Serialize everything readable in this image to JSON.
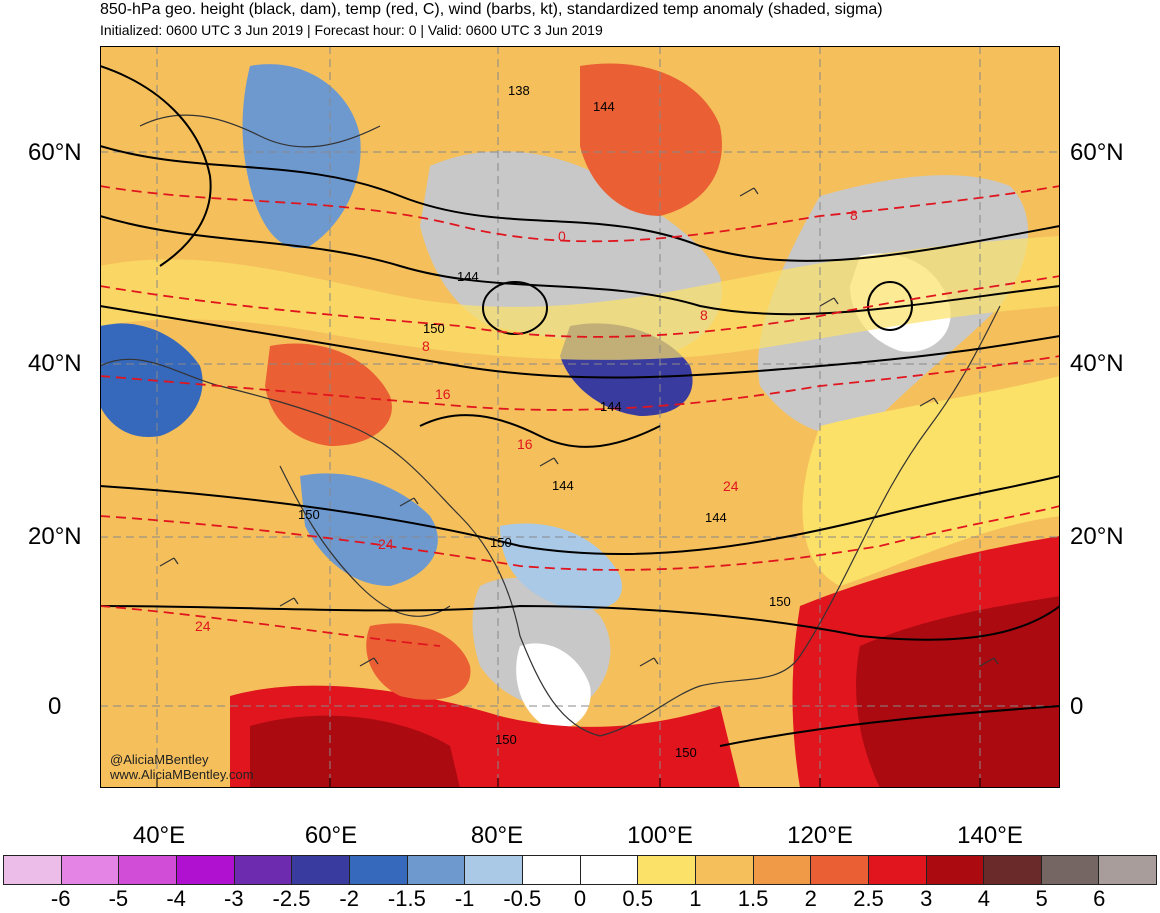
{
  "header": {
    "title": "850-hPa geo. height (black, dam), temp (red, C), wind (barbs, kt), standardized temp anomaly (shaded, sigma)",
    "subtitle": "Initialized: 0600 UTC 3 Jun 2019 | Forecast hour: 0 | Valid: 0600 UTC 3 Jun 2019"
  },
  "axes": {
    "lat_labels": [
      "60°N",
      "40°N",
      "20°N",
      "0"
    ],
    "lon_labels": [
      "40°E",
      "60°E",
      "80°E",
      "100°E",
      "120°E",
      "140°E"
    ]
  },
  "map": {
    "height_labels": [
      "138",
      "144",
      "144",
      "150",
      "144",
      "144",
      "150",
      "150",
      "144",
      "150",
      "150",
      "150"
    ],
    "temp_labels": [
      "0",
      "8",
      "8",
      "8",
      "16",
      "16",
      "24",
      "24",
      "24"
    ]
  },
  "watermark": {
    "line1": "@AliciaMBentley",
    "line2": "www.AliciaMBentley.com"
  },
  "colorbar": {
    "colors": [
      "#ecbde8",
      "#e484e4",
      "#d14dd8",
      "#b011d0",
      "#6d2cb0",
      "#3a3b9e",
      "#3668bb",
      "#6e99cf",
      "#a9c9e7",
      "#ffffff",
      "#ffffff",
      "#fce168",
      "#f5c05b",
      "#f09a48",
      "#ea5f33",
      "#e0151e",
      "#ab0a10",
      "#6a2a29",
      "#766663",
      "#a99d9b"
    ],
    "labels": [
      "-6",
      "-5",
      "-4",
      "-3",
      "-2.5",
      "-2",
      "-1.5",
      "-1",
      "-0.5",
      "0",
      "0.5",
      "1",
      "1.5",
      "2",
      "2.5",
      "3",
      "4",
      "5",
      "6"
    ]
  }
}
